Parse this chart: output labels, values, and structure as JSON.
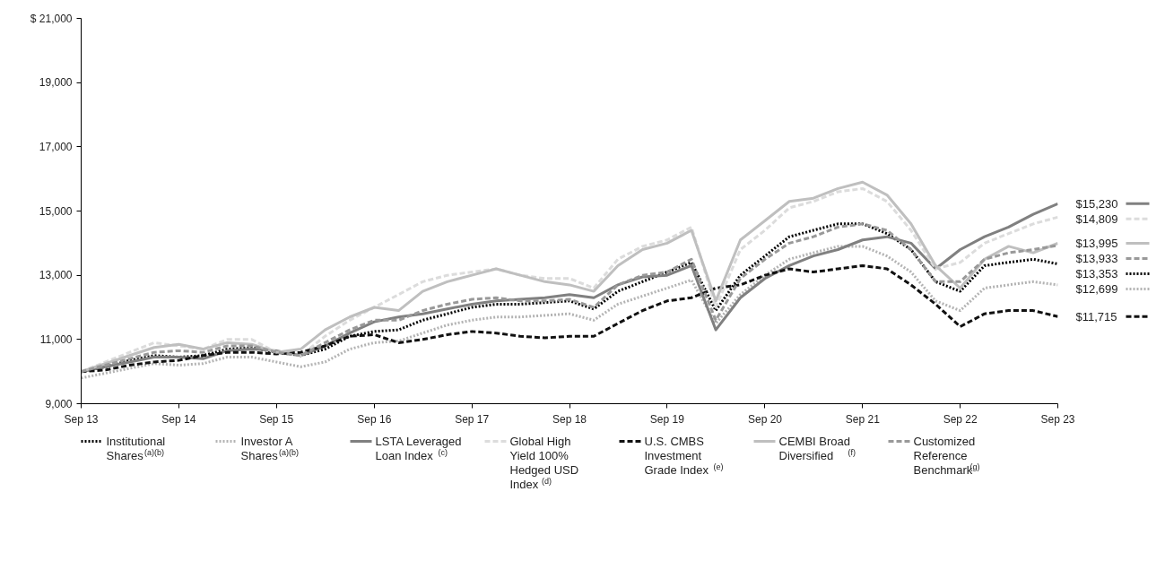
{
  "chart_data": {
    "type": "line",
    "x": [
      "2013-09",
      "2013-12",
      "2014-03",
      "2014-06",
      "2014-09",
      "2014-12",
      "2015-03",
      "2015-06",
      "2015-09",
      "2015-12",
      "2016-03",
      "2016-06",
      "2016-09",
      "2016-12",
      "2017-03",
      "2017-06",
      "2017-09",
      "2017-12",
      "2018-03",
      "2018-06",
      "2018-09",
      "2018-12",
      "2019-03",
      "2019-06",
      "2019-09",
      "2019-12",
      "2020-03",
      "2020-06",
      "2020-09",
      "2020-12",
      "2021-03",
      "2021-06",
      "2021-09",
      "2021-12",
      "2022-03",
      "2022-06",
      "2022-09",
      "2022-12",
      "2023-03",
      "2023-06",
      "2023-09"
    ],
    "series": [
      {
        "name": "Institutional Shares$^{(a)(b)}$",
        "color": "#000000",
        "line_style": "dotted",
        "values": [
          10000,
          10150,
          10350,
          10500,
          10450,
          10500,
          10700,
          10750,
          10600,
          10500,
          10700,
          11100,
          11250,
          11300,
          11600,
          11800,
          12000,
          12100,
          12100,
          12150,
          12200,
          11950,
          12500,
          12800,
          13100,
          13400,
          11900,
          13000,
          13600,
          14200,
          14400,
          14600,
          14600,
          14300,
          13800,
          12800,
          12500,
          13300,
          13400,
          13500,
          13353
        ],
        "value_labels": [
          null,
          null,
          null,
          null,
          null,
          null,
          null,
          null,
          null,
          null,
          null,
          null,
          null,
          null,
          null,
          null,
          null,
          null,
          null,
          null,
          null,
          null,
          null,
          null,
          null,
          null,
          null,
          null,
          null,
          null,
          null,
          null,
          null,
          null,
          null,
          null,
          null,
          null,
          null,
          null,
          "$13,353"
        ]
      },
      {
        "name": "Investor A Shares$^{(a)(b)}$",
        "color": "#b3b3b3",
        "line_style": "dotted",
        "values": [
          9800,
          9950,
          10100,
          10250,
          10200,
          10250,
          10450,
          10450,
          10300,
          10150,
          10300,
          10700,
          10900,
          10950,
          11200,
          11450,
          11600,
          11700,
          11700,
          11750,
          11800,
          11600,
          12100,
          12350,
          12600,
          12850,
          11500,
          12400,
          13000,
          13500,
          13700,
          13900,
          13900,
          13600,
          13100,
          12200,
          11900,
          12600,
          12700,
          12800,
          12699
        ],
        "value_labels": [
          null,
          null,
          null,
          null,
          null,
          null,
          null,
          null,
          null,
          null,
          null,
          null,
          null,
          null,
          null,
          null,
          null,
          null,
          null,
          null,
          null,
          null,
          null,
          null,
          null,
          null,
          null,
          null,
          null,
          null,
          null,
          null,
          null,
          null,
          null,
          null,
          null,
          null,
          null,
          null,
          "$12,699"
        ]
      },
      {
        "name": "LSTA Leveraged Loan Index$^{(c)}$",
        "color": "#808080",
        "line_style": "solid",
        "values": [
          10000,
          10150,
          10300,
          10450,
          10450,
          10400,
          10650,
          10700,
          10650,
          10500,
          10800,
          11200,
          11550,
          11700,
          11800,
          11950,
          12100,
          12200,
          12250,
          12300,
          12400,
          12300,
          12700,
          12950,
          13000,
          13300,
          11300,
          12300,
          12900,
          13300,
          13600,
          13800,
          14100,
          14200,
          14000,
          13200,
          13800,
          14200,
          14500,
          14900,
          15230
        ],
        "value_labels": [
          null,
          null,
          null,
          null,
          null,
          null,
          null,
          null,
          null,
          null,
          null,
          null,
          null,
          null,
          null,
          null,
          null,
          null,
          null,
          null,
          null,
          null,
          null,
          null,
          null,
          null,
          null,
          null,
          null,
          null,
          null,
          null,
          null,
          null,
          null,
          null,
          null,
          null,
          null,
          null,
          "$15,230"
        ]
      },
      {
        "name": "Global High Yield 100% Hedged USD Index$^{(d)}$",
        "color": "#dcdcdc",
        "line_style": "dashed",
        "values": [
          10000,
          10300,
          10600,
          10900,
          10800,
          10700,
          11000,
          11000,
          10600,
          10500,
          11100,
          11600,
          12000,
          12400,
          12800,
          13000,
          13100,
          13200,
          13000,
          12900,
          12900,
          12600,
          13500,
          13900,
          14100,
          14500,
          12000,
          13800,
          14400,
          15100,
          15300,
          15600,
          15700,
          15300,
          14400,
          13200,
          13400,
          14000,
          14300,
          14600,
          14809
        ],
        "value_labels": [
          null,
          null,
          null,
          null,
          null,
          null,
          null,
          null,
          null,
          null,
          null,
          null,
          null,
          null,
          null,
          null,
          null,
          null,
          null,
          null,
          null,
          null,
          null,
          null,
          null,
          null,
          null,
          null,
          null,
          null,
          null,
          null,
          null,
          null,
          null,
          null,
          null,
          null,
          null,
          null,
          "$14,809"
        ]
      },
      {
        "name": "U.S. CMBS Investment Grade Index$^{(e)}$",
        "color": "#111111",
        "line_style": "dashed",
        "values": [
          10000,
          10050,
          10200,
          10300,
          10350,
          10500,
          10600,
          10600,
          10550,
          10600,
          10800,
          11100,
          11150,
          10900,
          11000,
          11150,
          11250,
          11200,
          11100,
          11050,
          11100,
          11100,
          11500,
          11900,
          12200,
          12300,
          12600,
          12700,
          13000,
          13200,
          13100,
          13200,
          13300,
          13200,
          12700,
          12100,
          11400,
          11800,
          11900,
          11900,
          11715
        ],
        "value_labels": [
          null,
          null,
          null,
          null,
          null,
          null,
          null,
          null,
          null,
          null,
          null,
          null,
          null,
          null,
          null,
          null,
          null,
          null,
          null,
          null,
          null,
          null,
          null,
          null,
          null,
          null,
          null,
          null,
          null,
          null,
          null,
          null,
          null,
          null,
          null,
          null,
          null,
          null,
          null,
          null,
          "$11,715"
        ]
      },
      {
        "name": "CEMBI Broad Diversified$^{(f)}$",
        "color": "#bfbfbf",
        "line_style": "solid",
        "values": [
          10000,
          10250,
          10500,
          10750,
          10850,
          10700,
          10900,
          10850,
          10600,
          10700,
          11300,
          11700,
          12000,
          11900,
          12500,
          12800,
          13000,
          13200,
          13000,
          12800,
          12700,
          12500,
          13300,
          13800,
          14000,
          14400,
          12200,
          14100,
          14700,
          15300,
          15400,
          15700,
          15900,
          15500,
          14600,
          13300,
          12600,
          13500,
          13900,
          13700,
          13995
        ],
        "value_labels": [
          null,
          null,
          null,
          null,
          null,
          null,
          null,
          null,
          null,
          null,
          null,
          null,
          null,
          null,
          null,
          null,
          null,
          null,
          null,
          null,
          null,
          null,
          null,
          null,
          null,
          null,
          null,
          null,
          null,
          null,
          null,
          null,
          null,
          null,
          null,
          null,
          null,
          null,
          null,
          null,
          "$13,995"
        ]
      },
      {
        "name": "Customized Reference Benchmark$^{(g)}$",
        "color": "#999999",
        "line_style": "dashed",
        "values": [
          10000,
          10200,
          10400,
          10600,
          10650,
          10600,
          10800,
          10800,
          10600,
          10500,
          10900,
          11300,
          11600,
          11600,
          11900,
          12100,
          12250,
          12300,
          12200,
          12200,
          12250,
          12000,
          12700,
          13000,
          13100,
          13500,
          11600,
          12900,
          13500,
          14000,
          14200,
          14500,
          14600,
          14400,
          13800,
          12800,
          12800,
          13500,
          13700,
          13800,
          13933
        ],
        "value_labels": [
          null,
          null,
          null,
          null,
          null,
          null,
          null,
          null,
          null,
          null,
          null,
          null,
          null,
          null,
          null,
          null,
          null,
          null,
          null,
          null,
          null,
          null,
          null,
          null,
          null,
          null,
          null,
          null,
          null,
          null,
          null,
          null,
          null,
          null,
          null,
          null,
          null,
          null,
          null,
          null,
          "$13,933"
        ]
      }
    ],
    "xlim": [
      "2013-09",
      "2023-09"
    ],
    "xticks": [
      {
        "value": "2013-09",
        "label": "Sep 13"
      },
      {
        "value": "2014-09",
        "label": "Sep 14"
      },
      {
        "value": "2015-09",
        "label": "Sep 15"
      },
      {
        "value": "2016-09",
        "label": "Sep 16"
      },
      {
        "value": "2017-09",
        "label": "Sep 17"
      },
      {
        "value": "2018-09",
        "label": "Sep 18"
      },
      {
        "value": "2019-09",
        "label": "Sep 19"
      },
      {
        "value": "2020-09",
        "label": "Sep 20"
      },
      {
        "value": "2021-09",
        "label": "Sep 21"
      },
      {
        "value": "2022-09",
        "label": "Sep 22"
      },
      {
        "value": "2023-09",
        "label": "Sep 23"
      }
    ],
    "ylim": [
      9000,
      21000
    ],
    "yticks": [
      {
        "value": 9000,
        "label": "9,000"
      },
      {
        "value": 11000,
        "label": "11,000"
      },
      {
        "value": 13000,
        "label": "13,000"
      },
      {
        "value": 15000,
        "label": "15,000"
      },
      {
        "value": 17000,
        "label": "17,000"
      },
      {
        "value": 19000,
        "label": "19,000"
      },
      {
        "value": 21000,
        "label": "$ 21,000"
      }
    ],
    "grid": false,
    "legend": "bottom"
  }
}
